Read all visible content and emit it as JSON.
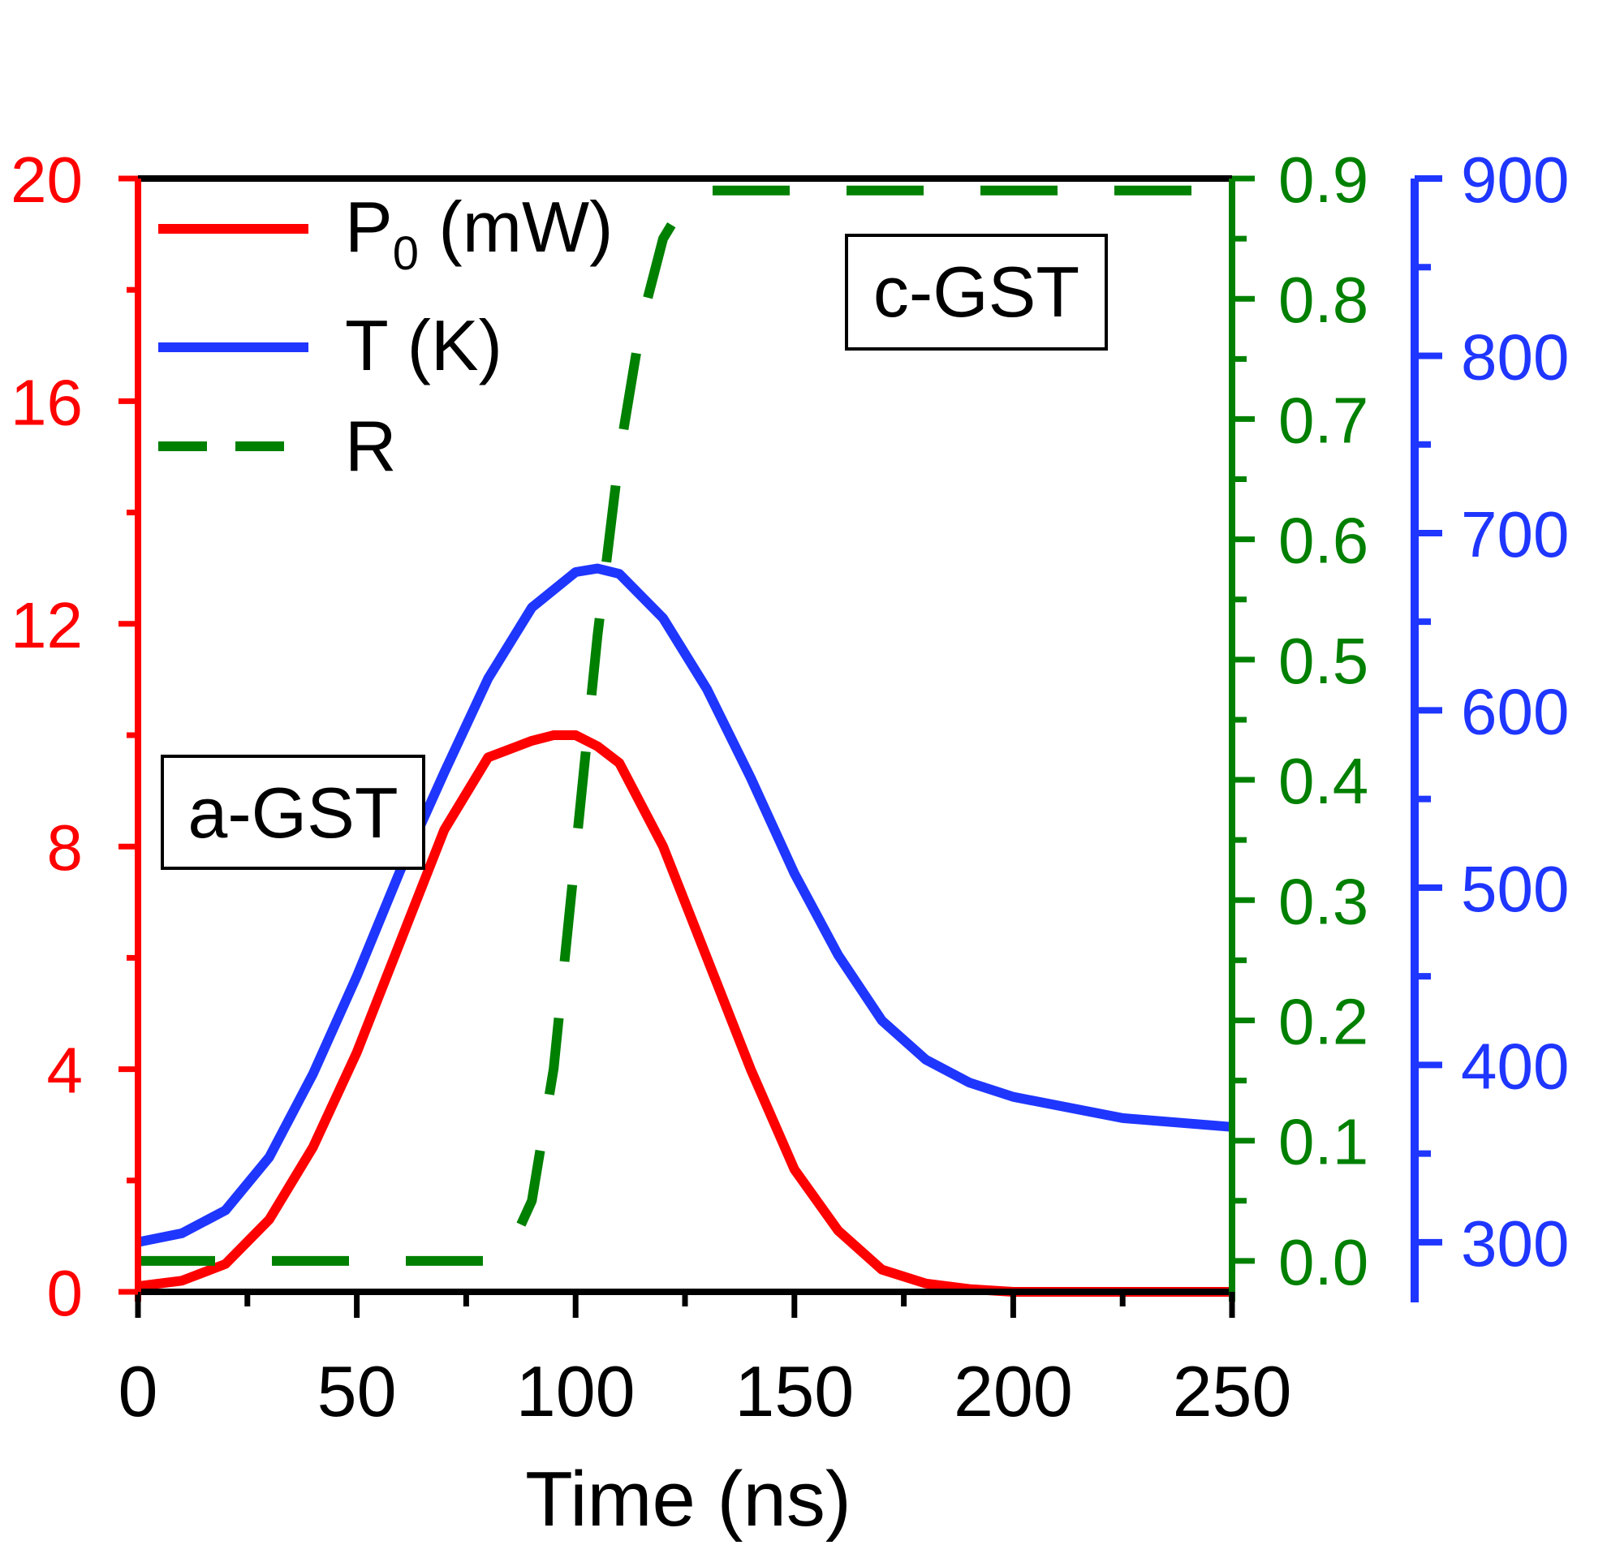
{
  "chart_data": {
    "type": "line",
    "title": "",
    "xlabel": "Time (ns)",
    "xlim": [
      0,
      250
    ],
    "x_ticks": [
      "0",
      "50",
      "100",
      "150",
      "200",
      "250"
    ],
    "axes": {
      "left": {
        "label": "",
        "lim": [
          0,
          20
        ],
        "ticks": [
          "0",
          "4",
          "8",
          "12",
          "16",
          "20"
        ],
        "color": "#ff0000"
      },
      "right_green": {
        "label": "",
        "lim": [
          -0.0257,
          0.9
        ],
        "ticks": [
          "0.0",
          "0.1",
          "0.2",
          "0.3",
          "0.4",
          "0.5",
          "0.6",
          "0.7",
          "0.8",
          "0.9"
        ],
        "color": "#008000"
      },
      "right_blue": {
        "label": "",
        "lim": [
          272,
          900
        ],
        "ticks": [
          "300",
          "400",
          "500",
          "600",
          "700",
          "800",
          "900"
        ],
        "color": "#1f36ff"
      }
    },
    "series": [
      {
        "name": "P0 (mW)",
        "legend_main": "P",
        "legend_sub": "0",
        "legend_tail": " (mW)",
        "axis": "left",
        "color": "#ff0000",
        "style": "solid",
        "x": [
          0,
          10,
          20,
          30,
          40,
          50,
          60,
          70,
          80,
          90,
          95,
          100,
          105,
          110,
          120,
          130,
          140,
          150,
          160,
          170,
          180,
          190,
          200,
          225,
          250
        ],
        "values": [
          0.1,
          0.2,
          0.5,
          1.3,
          2.6,
          4.3,
          6.3,
          8.3,
          9.6,
          9.9,
          10.0,
          10.0,
          9.8,
          9.5,
          8.0,
          6.0,
          4.0,
          2.2,
          1.1,
          0.4,
          0.15,
          0.05,
          0.0,
          0.0,
          0.0
        ]
      },
      {
        "name": "T (K)",
        "axis": "right_blue",
        "color": "#1f36ff",
        "style": "solid",
        "x": [
          0,
          10,
          20,
          30,
          40,
          50,
          60,
          70,
          80,
          90,
          100,
          105,
          110,
          120,
          130,
          140,
          150,
          160,
          170,
          180,
          190,
          200,
          225,
          250
        ],
        "values": [
          300,
          305,
          318,
          348,
          395,
          450,
          510,
          565,
          618,
          658,
          678,
          680,
          677,
          652,
          612,
          562,
          508,
          462,
          425,
          403,
          390,
          382,
          370,
          365
        ]
      },
      {
        "name": "R",
        "axis": "right_green",
        "color": "#008000",
        "style": "dashed",
        "x": [
          0,
          80,
          85,
          90,
          95,
          100,
          105,
          110,
          115,
          120,
          125,
          130,
          140,
          150,
          200,
          250
        ],
        "values": [
          0.0,
          0.0,
          0.01,
          0.05,
          0.16,
          0.34,
          0.52,
          0.67,
          0.78,
          0.85,
          0.88,
          0.89,
          0.89,
          0.89,
          0.89,
          0.89
        ]
      }
    ],
    "legend": "top-left",
    "annotations": [
      {
        "text": "a-GST",
        "position": "left-middle"
      },
      {
        "text": "c-GST",
        "position": "top-right"
      }
    ]
  }
}
